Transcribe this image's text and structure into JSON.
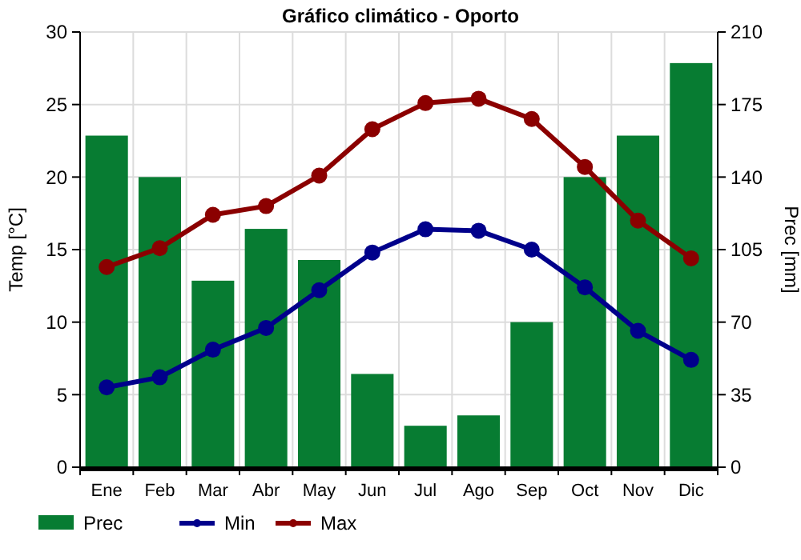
{
  "chart_data": {
    "type": "bar",
    "title": "Gráfico climático - Oporto",
    "ylabel": "Temp [°C]",
    "y2label": "Prec [mm]",
    "categories": [
      "Ene",
      "Feb",
      "Mar",
      "Abr",
      "May",
      "Jun",
      "Jul",
      "Ago",
      "Sep",
      "Oct",
      "Nov",
      "Dic"
    ],
    "series": [
      {
        "name": "Prec",
        "axis": "y2",
        "color": "#077c32",
        "values": [
          160,
          140,
          90,
          115,
          100,
          45,
          20,
          25,
          70,
          140,
          160,
          195
        ]
      },
      {
        "name": "Min",
        "type": "line",
        "axis": "y",
        "color": "#00008b",
        "values": [
          5.5,
          6.2,
          8.1,
          9.6,
          12.2,
          14.8,
          16.4,
          16.3,
          15.0,
          12.4,
          9.4,
          7.4
        ]
      },
      {
        "name": "Max",
        "type": "line",
        "axis": "y",
        "color": "#8b0000",
        "values": [
          13.8,
          15.1,
          17.4,
          18.0,
          20.1,
          23.3,
          25.1,
          25.4,
          24.0,
          20.7,
          17.0,
          14.4
        ]
      }
    ],
    "ylim": [
      0,
      30
    ],
    "yticks": [
      0,
      5,
      10,
      15,
      20,
      25,
      30
    ],
    "y2lim": [
      0,
      210
    ],
    "y2ticks": [
      0,
      35,
      70,
      105,
      140,
      175,
      210
    ],
    "grid": true,
    "legend": "bottom left",
    "marker": "circle",
    "line_style": "solid"
  }
}
